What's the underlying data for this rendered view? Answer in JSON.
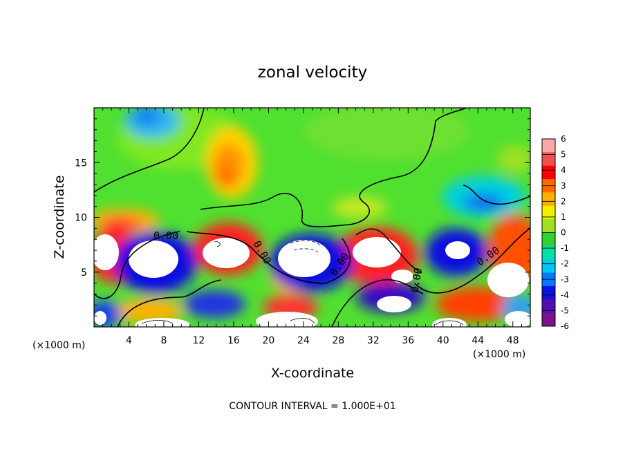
{
  "chart_data": {
    "type": "heatmap",
    "title": "zonal velocity",
    "xlabel": "X-coordinate",
    "ylabel": "Z-coordinate",
    "x_unit_note": "(×1000 m)",
    "xlim": [
      0,
      50
    ],
    "ylim": [
      0,
      20
    ],
    "x_ticks": [
      4,
      8,
      12,
      16,
      20,
      24,
      28,
      32,
      36,
      40,
      44,
      48
    ],
    "y_ticks": [
      5,
      10,
      15
    ],
    "colorbar": {
      "ticks": [
        6,
        5,
        4,
        3,
        2,
        1,
        0,
        -1,
        -2,
        -3,
        -4,
        -5,
        -6
      ],
      "colors": [
        "#f7a8a8",
        "#f05050",
        "#ff0000",
        "#ff6a00",
        "#ffb000",
        "#f0f000",
        "#a0e020",
        "#30d030",
        "#00e0a0",
        "#00c8f0",
        "#0078ff",
        "#1010e0",
        "#5010b0",
        "#7a1090"
      ]
    },
    "contour_labels": [
      "0.00",
      "0.00",
      "0.00",
      "0.00",
      "0.00"
    ],
    "footer": "CONTOUR INTERVAL = 1.000E+01"
  }
}
